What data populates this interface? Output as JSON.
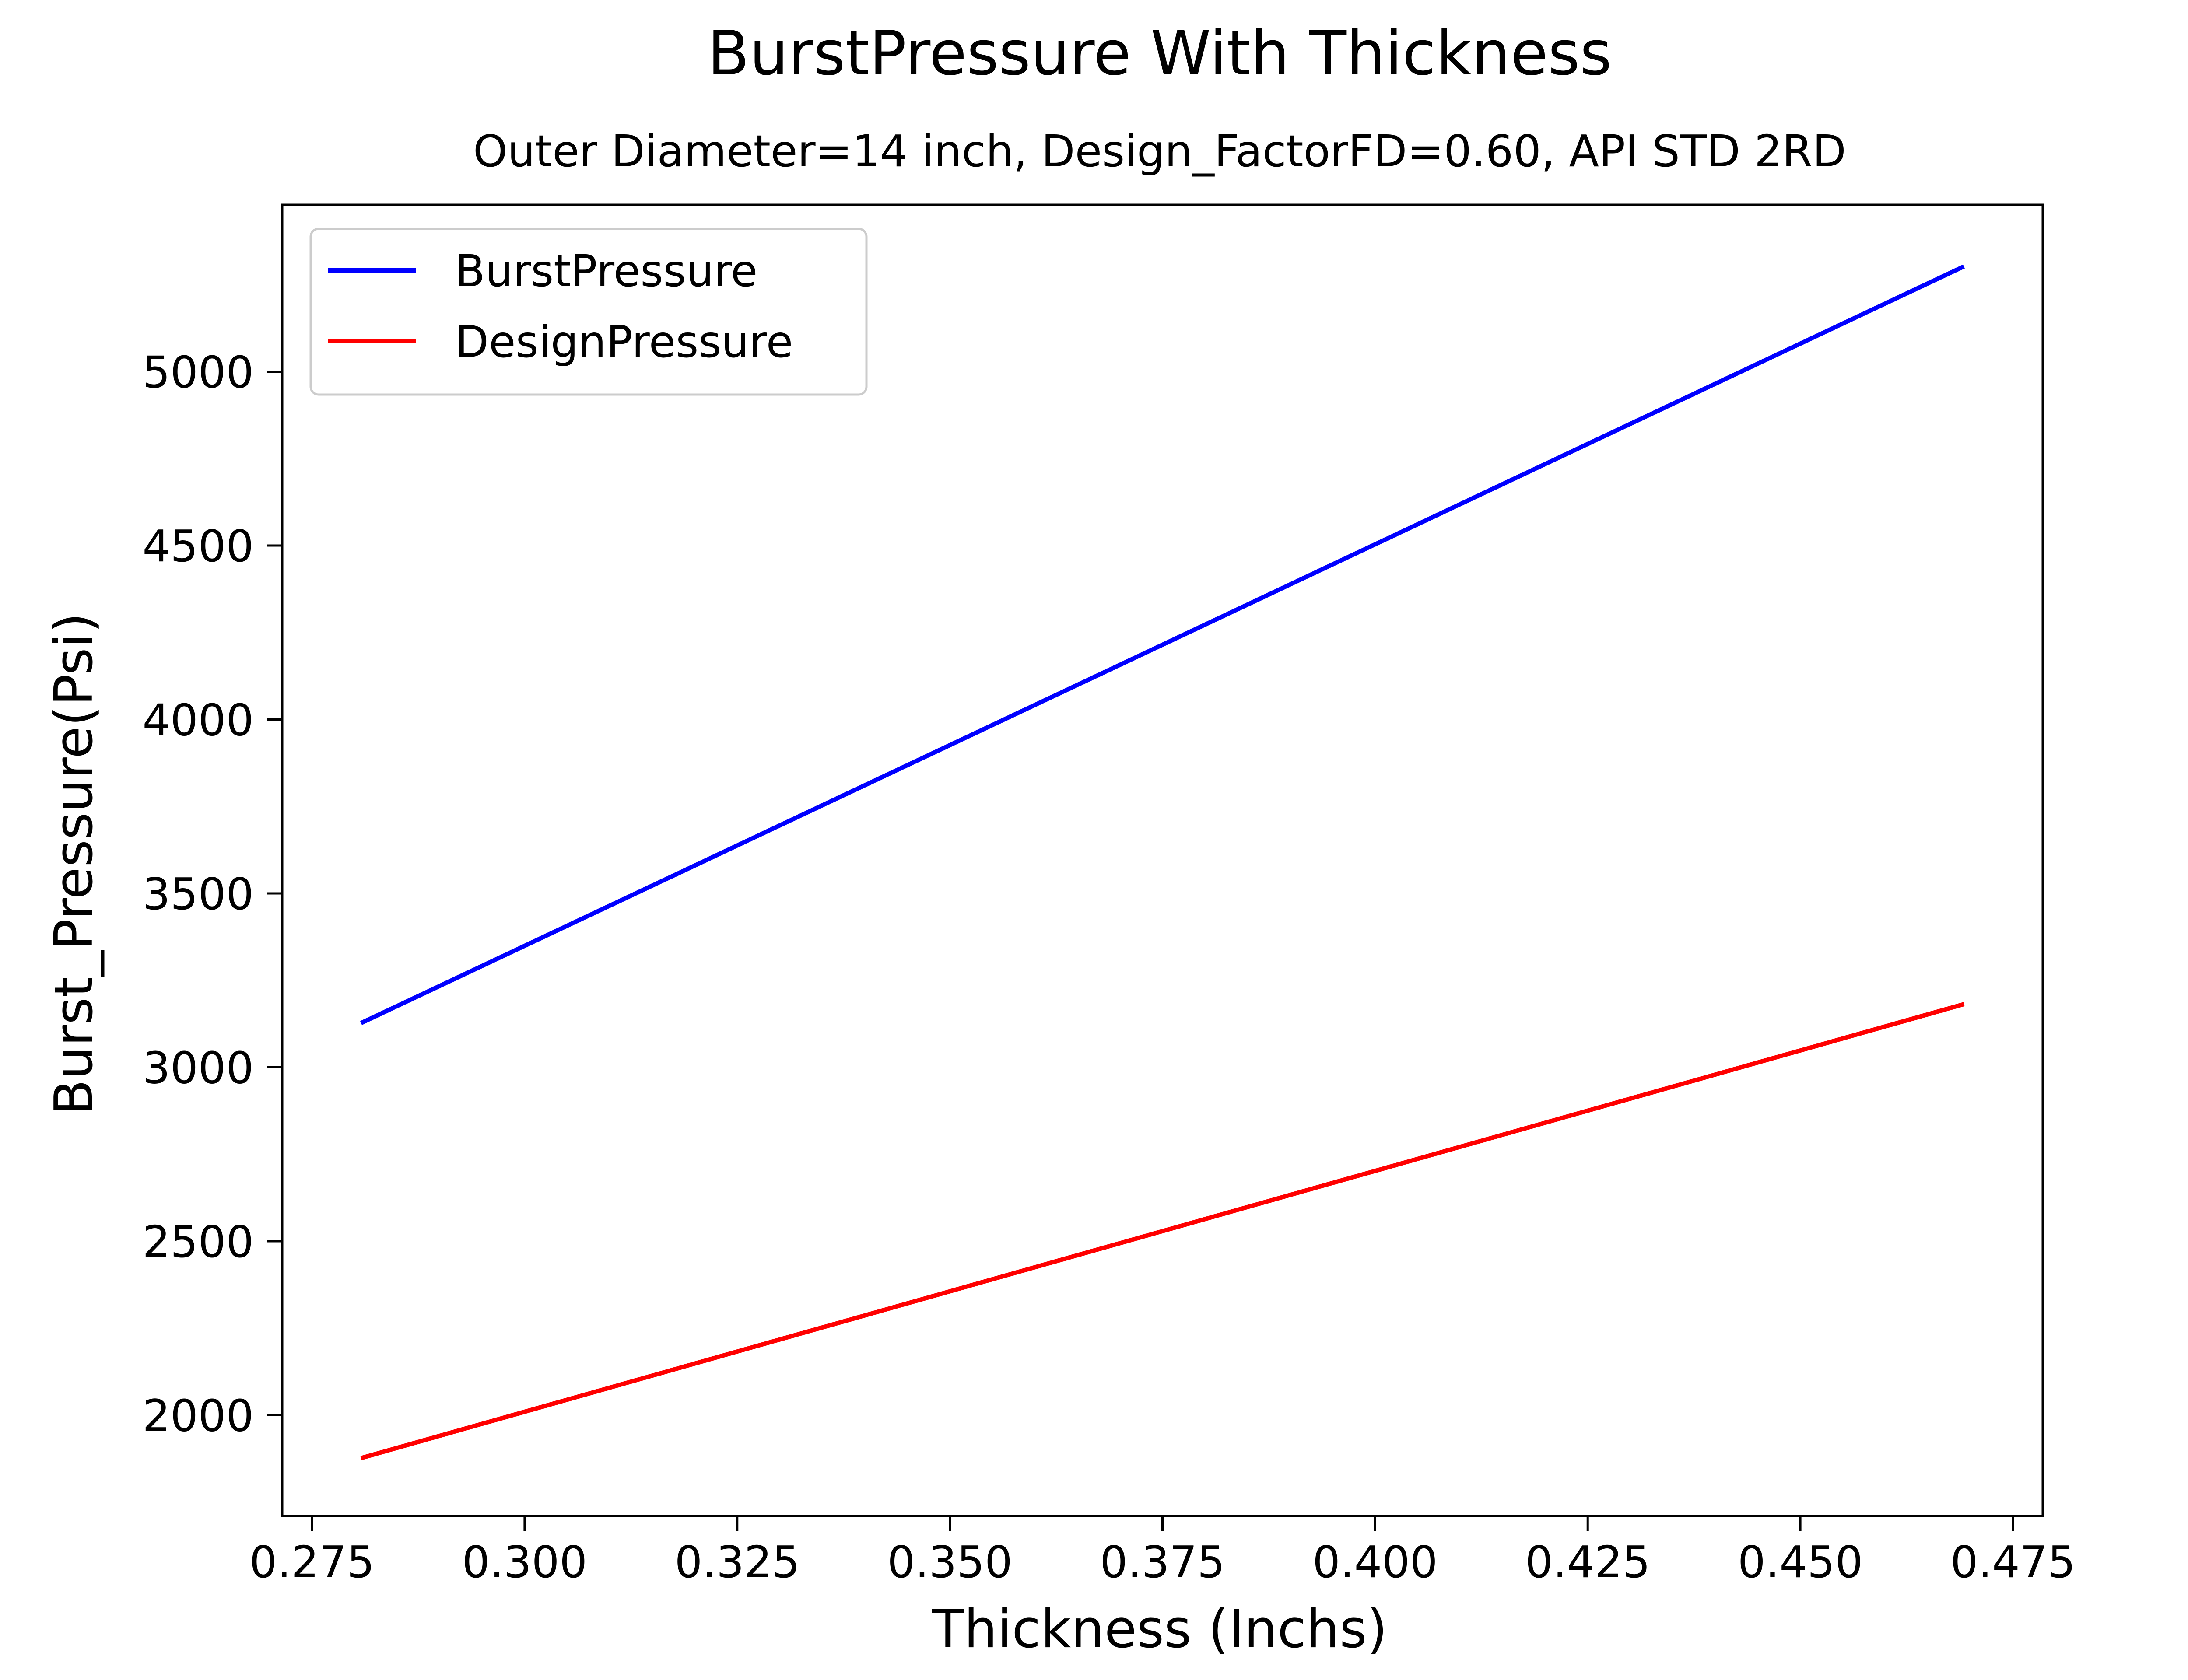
{
  "chart_data": {
    "type": "line",
    "title": "BurstPressure With Thickness",
    "subtitle": "Outer Diameter=14 inch, Design_FactorFD=0.60, API STD 2RD",
    "xlabel": "Thickness (Inchs)",
    "ylabel": "Burst_Pressure(Psi)",
    "xlim": [
      0.2715,
      0.4785
    ],
    "ylim": [
      1710,
      5480
    ],
    "xticks": [
      0.275,
      0.3,
      0.325,
      0.35,
      0.375,
      0.4,
      0.425,
      0.45,
      0.475
    ],
    "xtick_labels": [
      "0.275",
      "0.300",
      "0.325",
      "0.350",
      "0.375",
      "0.400",
      "0.425",
      "0.450",
      "0.475"
    ],
    "yticks": [
      2000,
      2500,
      3000,
      3500,
      4000,
      4500,
      5000
    ],
    "ytick_labels": [
      "2000",
      "2500",
      "3000",
      "3500",
      "4000",
      "4500",
      "5000"
    ],
    "grid": false,
    "legend_position": "upper-left",
    "series": [
      {
        "name": "BurstPressure",
        "color": "#0000ff",
        "x": [
          0.281,
          0.469
        ],
        "y": [
          3130,
          5300
        ]
      },
      {
        "name": "DesignPressure",
        "color": "#ff0000",
        "x": [
          0.281,
          0.469
        ],
        "y": [
          1878,
          3180
        ]
      }
    ],
    "colors": {
      "subtitle": "#0000ff",
      "axes": "#000000",
      "legend_border": "#cccccc"
    }
  }
}
